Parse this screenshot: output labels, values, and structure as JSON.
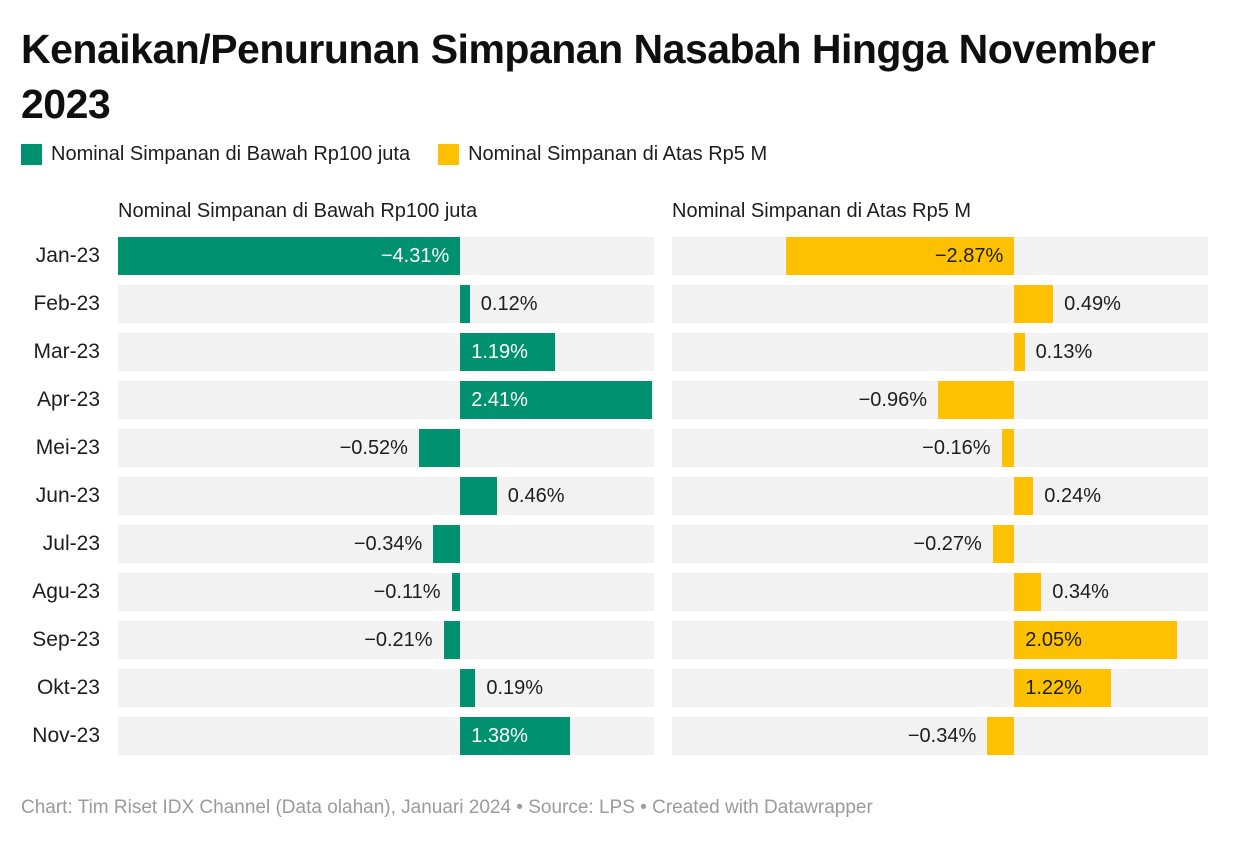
{
  "title": "Kenaikan/Penurunan Simpanan Nasabah Hingga November 2023",
  "legend": {
    "items": [
      {
        "label": "Nominal Simpanan di Bawah Rp100 juta",
        "color": "#009170"
      },
      {
        "label": "Nominal Simpanan di Atas Rp5 M",
        "color": "#fdc101"
      }
    ]
  },
  "chart_data": {
    "type": "bar",
    "orientation": "horizontal",
    "grid": false,
    "legend_position": "top",
    "categories": [
      "Jan-23",
      "Feb-23",
      "Mar-23",
      "Apr-23",
      "Mei-23",
      "Jun-23",
      "Jul-23",
      "Agu-23",
      "Sep-23",
      "Okt-23",
      "Nov-23"
    ],
    "series": [
      {
        "name": "Nominal Simpanan di Bawah Rp100 juta",
        "color": "#009170",
        "inside_label_color": "#ffffff",
        "values": [
          -4.31,
          0.12,
          1.19,
          2.41,
          -0.52,
          0.46,
          -0.34,
          -0.11,
          -0.21,
          0.19,
          1.38
        ]
      },
      {
        "name": "Nominal Simpanan di Atas Rp5 M",
        "color": "#fdc101",
        "inside_label_color": "#1d1d1d",
        "values": [
          -2.87,
          0.49,
          0.13,
          -0.96,
          -0.16,
          0.24,
          -0.27,
          0.34,
          2.05,
          1.22,
          -0.34
        ]
      }
    ],
    "value_suffix": "%",
    "value_decimals": 2,
    "xlim": [
      -4.31,
      2.44
    ],
    "row_background": "#f2f2f2",
    "outside_label_color": "#1d1d1d",
    "inside_label_threshold": 1.1
  },
  "footer": {
    "text": "Chart: Tim Riset IDX Channel (Data olahan), Januari 2024 • Source: LPS • Created with Datawrapper"
  }
}
